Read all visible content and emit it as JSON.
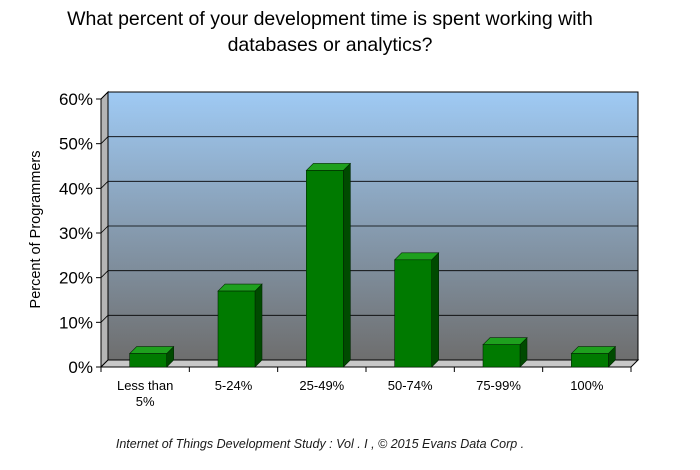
{
  "chart_data": {
    "type": "bar",
    "title": "What percent of your development time is spent working with databases or analytics?",
    "title_lines": [
      "What percent of your development time is spent working with",
      "databases or analytics?"
    ],
    "ylabel": "Percent of Programmers",
    "xlabel": "",
    "categories": [
      "Less than 5%",
      "5-24%",
      "25-49%",
      "50-74%",
      "75-99%",
      "100%"
    ],
    "category_lines": [
      [
        "Less than",
        "5%"
      ],
      [
        "5-24%"
      ],
      [
        "25-49%"
      ],
      [
        "50-74%"
      ],
      [
        "75-99%"
      ],
      [
        "100%"
      ]
    ],
    "values": [
      3,
      17,
      44,
      24,
      5,
      3
    ],
    "ylim": [
      0,
      60
    ],
    "yticks": [
      0,
      10,
      20,
      30,
      40,
      50,
      60
    ],
    "ytick_labels": [
      "0%",
      "10%",
      "20%",
      "30%",
      "40%",
      "50%",
      "60%"
    ],
    "grid": true,
    "legend": "none",
    "bar_color": "#007a00",
    "plot_background_top": "#9fcaf4",
    "plot_background_bottom": "#6e6e6e"
  },
  "footer": "Internet of Things Development Study  :  Vol  .  I  ,  © 2015  Evans Data Corp  ."
}
